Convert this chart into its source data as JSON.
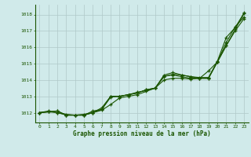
{
  "title": "Graphe pression niveau de la mer (hPa)",
  "x_ticks": [
    0,
    1,
    2,
    3,
    4,
    5,
    6,
    7,
    8,
    9,
    10,
    11,
    12,
    13,
    14,
    15,
    16,
    17,
    18,
    19,
    20,
    21,
    22,
    23
  ],
  "ylim": [
    1011.4,
    1018.6
  ],
  "xlim": [
    -0.5,
    23.5
  ],
  "yticks": [
    1012,
    1013,
    1014,
    1015,
    1016,
    1017,
    1018
  ],
  "bg_color": "#d0eaea",
  "grid_color": "#b0c8c8",
  "line_color": "#1a5500",
  "series": [
    [
      1012.0,
      1012.1,
      1012.0,
      1011.9,
      1011.85,
      1011.9,
      1012.0,
      1012.15,
      1012.5,
      1012.9,
      1013.0,
      1013.1,
      1013.3,
      1013.5,
      1014.0,
      1014.1,
      1014.1,
      1014.05,
      1014.1,
      1014.55,
      1015.1,
      1016.3,
      1017.25,
      1017.85
    ],
    [
      1012.0,
      1012.05,
      1012.0,
      1011.85,
      1011.85,
      1011.85,
      1012.0,
      1012.2,
      1012.95,
      1013.0,
      1013.1,
      1013.25,
      1013.35,
      1013.5,
      1014.2,
      1014.35,
      1014.3,
      1014.2,
      1014.1,
      1014.1,
      1015.1,
      1016.1,
      1017.1,
      1018.05
    ],
    [
      1012.0,
      1012.05,
      1012.1,
      1011.85,
      1011.85,
      1011.85,
      1012.0,
      1012.3,
      1013.0,
      1013.0,
      1013.1,
      1013.2,
      1013.4,
      1013.5,
      1014.3,
      1014.45,
      1014.3,
      1014.2,
      1014.15,
      1014.15,
      1015.15,
      1016.6,
      1017.2,
      1018.1
    ],
    [
      1012.0,
      1012.05,
      1012.1,
      1011.85,
      1011.85,
      1011.85,
      1012.1,
      1012.2,
      1013.0,
      1013.0,
      1013.1,
      1013.2,
      1013.4,
      1013.5,
      1014.25,
      1014.3,
      1014.2,
      1014.1,
      1014.1,
      1014.1,
      1015.1,
      1016.1,
      1017.0,
      1017.75
    ]
  ]
}
